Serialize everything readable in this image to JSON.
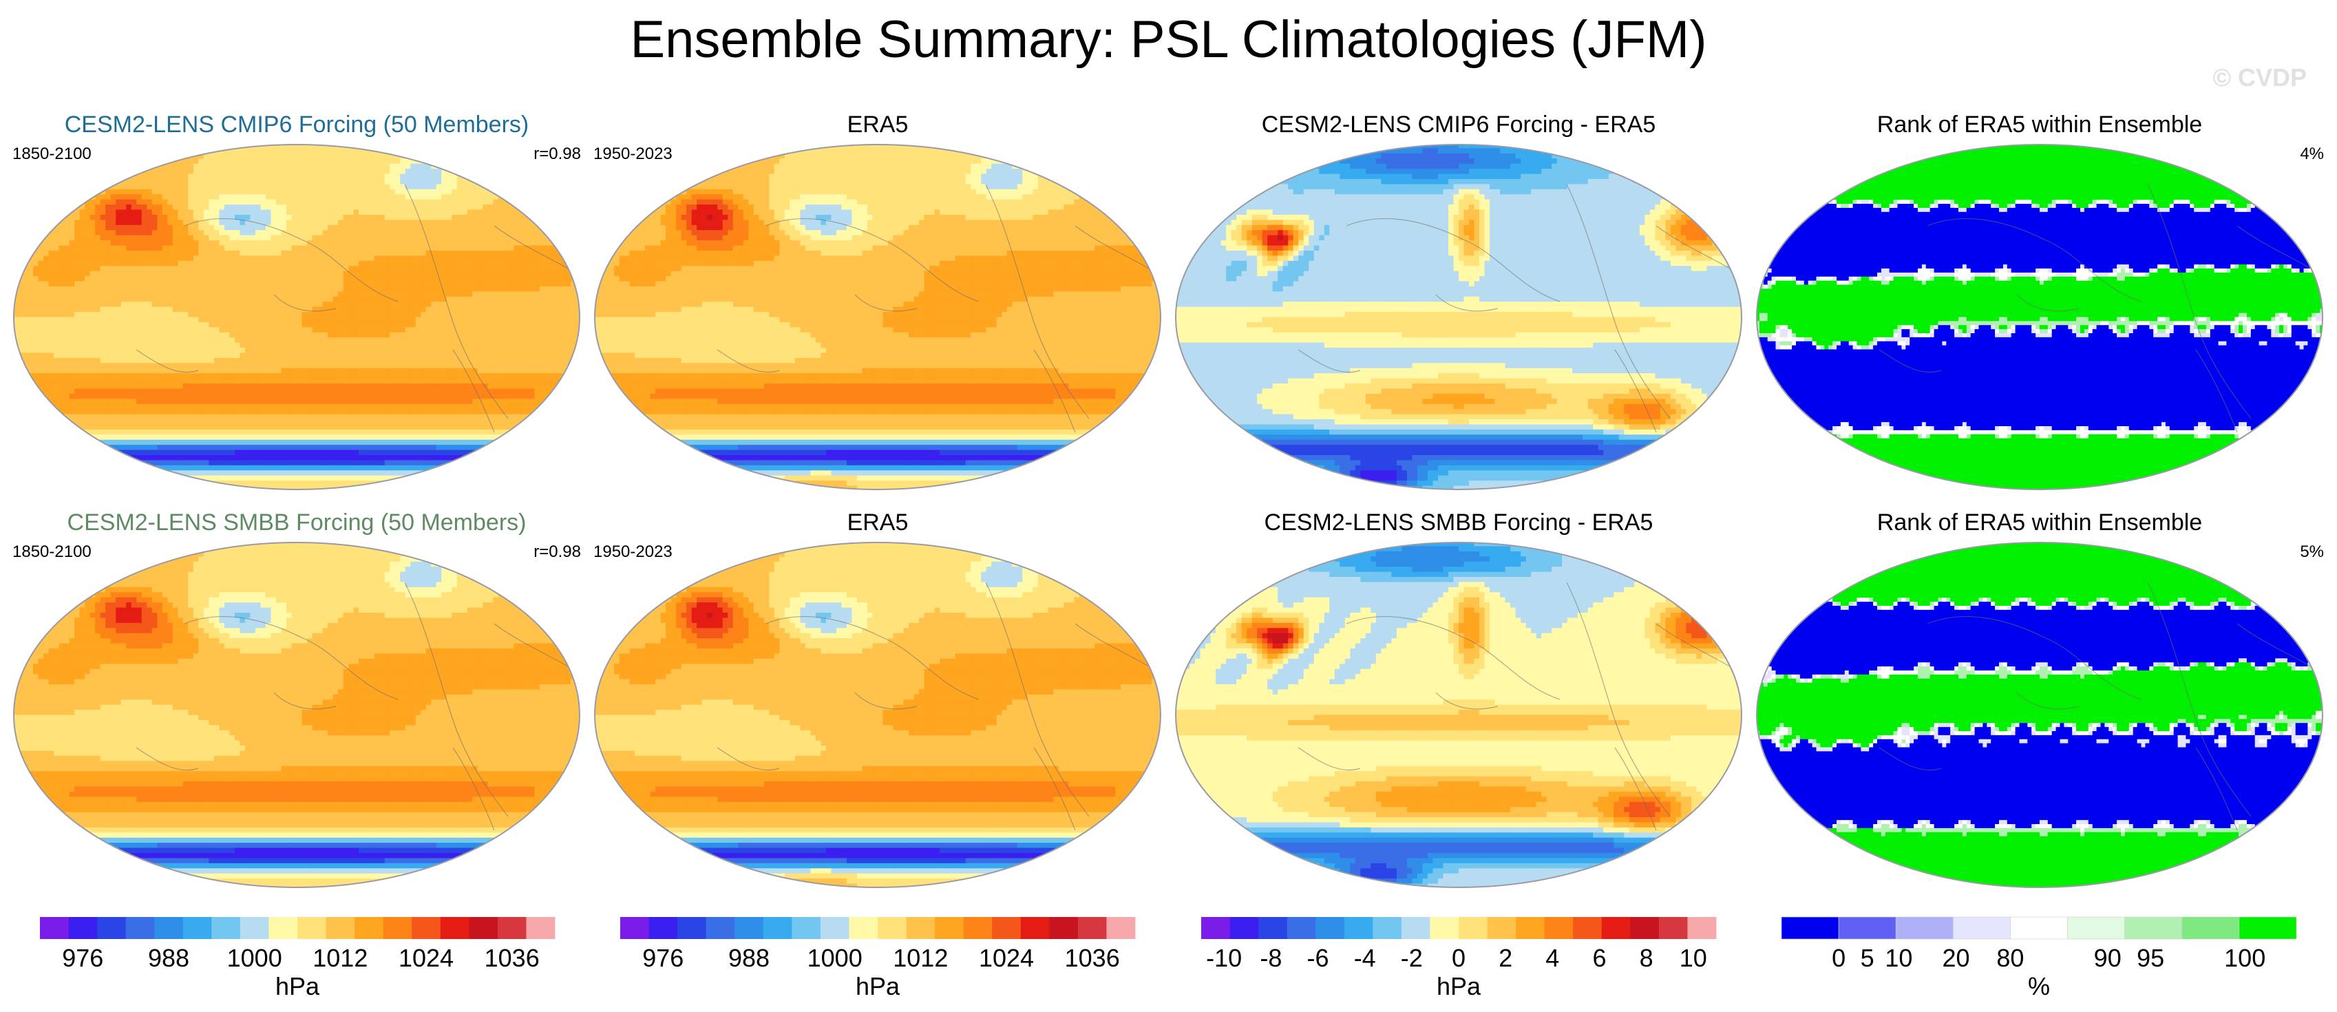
{
  "title": "Ensemble Summary: PSL Climatologies (JFM)",
  "watermark": "© CVDP",
  "colors": {
    "psl": [
      "#7b1de8",
      "#3b1ef0",
      "#2a44e6",
      "#3a6ee6",
      "#2f8ee8",
      "#37aaf0",
      "#72c6f0",
      "#b7dcf2",
      "#fff9a8",
      "#ffe27a",
      "#ffc24a",
      "#ffa51f",
      "#ff8418",
      "#f5561a",
      "#e51c14",
      "#c8141e",
      "#d7373e",
      "#f7a8aa"
    ],
    "diff": [
      "#7b1de8",
      "#3b1ef0",
      "#2a44e6",
      "#3a6ee6",
      "#2f8ee8",
      "#37aaf0",
      "#72c6f0",
      "#b7dcf2",
      "#fff9a8",
      "#ffe27a",
      "#ffc24a",
      "#ffa51f",
      "#ff8418",
      "#f5561a",
      "#e51c14",
      "#c8141e",
      "#d7373e",
      "#f7a8aa"
    ],
    "rank": [
      "#0000f0",
      "#6060f4",
      "#b0b0f8",
      "#e4e4fc",
      "#ffffff",
      "#e2fae2",
      "#b0f0b0",
      "#80e880",
      "#00f000"
    ],
    "map_border": "#9a9aa6"
  },
  "panels": [
    {
      "title": "CESM2-LENS CMIP6 Forcing (50 Members)",
      "title_color": "#1f6e96",
      "left_label": "1850-2100",
      "right_label": "r=0.98",
      "kind": "psl"
    },
    {
      "title": "ERA5",
      "title_color": "#000000",
      "left_label": "1950-2023",
      "right_label": "",
      "kind": "psl"
    },
    {
      "title": "CESM2-LENS CMIP6 Forcing - ERA5",
      "title_color": "#000000",
      "left_label": "",
      "right_label": "",
      "kind": "diff"
    },
    {
      "title": "Rank of ERA5 within Ensemble",
      "title_color": "#000000",
      "left_label": "",
      "right_label": "4%",
      "kind": "rank"
    },
    {
      "title": "CESM2-LENS SMBB Forcing (50 Members)",
      "title_color": "#5f8a64",
      "left_label": "1850-2100",
      "right_label": "r=0.98",
      "kind": "psl"
    },
    {
      "title": "ERA5",
      "title_color": "#000000",
      "left_label": "1950-2023",
      "right_label": "",
      "kind": "psl"
    },
    {
      "title": "CESM2-LENS SMBB Forcing - ERA5",
      "title_color": "#000000",
      "left_label": "",
      "right_label": "",
      "kind": "diff"
    },
    {
      "title": "Rank of ERA5 within Ensemble",
      "title_color": "#000000",
      "left_label": "",
      "right_label": "5%",
      "kind": "rank"
    }
  ],
  "colorbars": [
    {
      "kind": "psl",
      "ticks": [
        "976",
        "988",
        "1000",
        "1012",
        "1024",
        "1036"
      ],
      "units": "hPa"
    },
    {
      "kind": "psl",
      "ticks": [
        "976",
        "988",
        "1000",
        "1012",
        "1024",
        "1036"
      ],
      "units": "hPa"
    },
    {
      "kind": "diff",
      "ticks": [
        "-10",
        "-8",
        "-6",
        "-4",
        "-2",
        "0",
        "2",
        "4",
        "6",
        "8",
        "10"
      ],
      "units": "hPa"
    },
    {
      "kind": "rank",
      "ticks": [
        "0",
        "5",
        "10",
        "20",
        "80",
        "90",
        "95",
        "100"
      ],
      "units": "%"
    }
  ],
  "chart_data": [
    {
      "type": "heatmap",
      "title": "CESM2-LENS CMIP6 Forcing (50 Members)",
      "period": "1850-2100",
      "pattern_correlation": 0.98,
      "units": "hPa",
      "contour_levels": [
        972,
        976,
        980,
        984,
        988,
        992,
        996,
        1000,
        1004,
        1008,
        1012,
        1016,
        1020,
        1024,
        1028,
        1032,
        1036,
        1040
      ]
    },
    {
      "type": "heatmap",
      "title": "ERA5",
      "period": "1950-2023",
      "units": "hPa",
      "contour_levels": [
        972,
        976,
        980,
        984,
        988,
        992,
        996,
        1000,
        1004,
        1008,
        1012,
        1016,
        1020,
        1024,
        1028,
        1032,
        1036,
        1040
      ]
    },
    {
      "type": "heatmap",
      "title": "CESM2-LENS CMIP6 Forcing - ERA5",
      "units": "hPa",
      "contour_levels": [
        -11,
        -10,
        -9,
        -8,
        -7,
        -6,
        -5,
        -4,
        -3,
        -2,
        -1,
        0,
        1,
        2,
        3,
        4,
        5,
        6,
        7,
        8,
        9,
        10,
        11
      ]
    },
    {
      "type": "heatmap",
      "title": "Rank of ERA5 within Ensemble",
      "summary_percent": 4,
      "units": "%",
      "bin_edges": [
        0,
        5,
        10,
        20,
        80,
        90,
        95,
        100
      ]
    },
    {
      "type": "heatmap",
      "title": "CESM2-LENS SMBB Forcing (50 Members)",
      "period": "1850-2100",
      "pattern_correlation": 0.98,
      "units": "hPa",
      "contour_levels": [
        972,
        976,
        980,
        984,
        988,
        992,
        996,
        1000,
        1004,
        1008,
        1012,
        1016,
        1020,
        1024,
        1028,
        1032,
        1036,
        1040
      ]
    },
    {
      "type": "heatmap",
      "title": "ERA5",
      "period": "1950-2023",
      "units": "hPa",
      "contour_levels": [
        972,
        976,
        980,
        984,
        988,
        992,
        996,
        1000,
        1004,
        1008,
        1012,
        1016,
        1020,
        1024,
        1028,
        1032,
        1036,
        1040
      ]
    },
    {
      "type": "heatmap",
      "title": "CESM2-LENS SMBB Forcing - ERA5",
      "units": "hPa",
      "contour_levels": [
        -11,
        -10,
        -9,
        -8,
        -7,
        -6,
        -5,
        -4,
        -3,
        -2,
        -1,
        0,
        1,
        2,
        3,
        4,
        5,
        6,
        7,
        8,
        9,
        10,
        11
      ]
    },
    {
      "type": "heatmap",
      "title": "Rank of ERA5 within Ensemble",
      "summary_percent": 5,
      "units": "%",
      "bin_edges": [
        0,
        5,
        10,
        20,
        80,
        90,
        95,
        100
      ]
    }
  ]
}
